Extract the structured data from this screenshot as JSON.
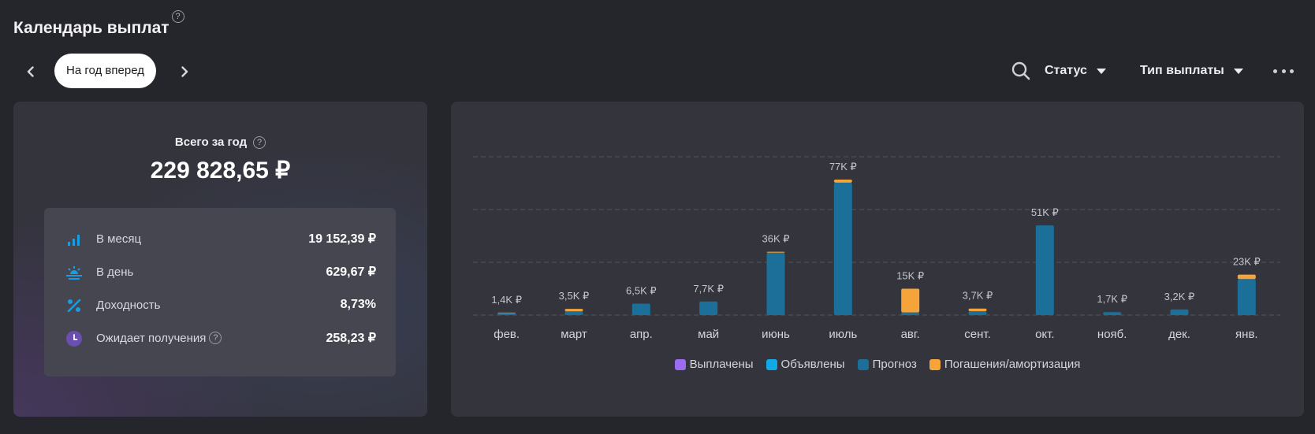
{
  "header": {
    "title": "Календарь выплат",
    "help": "?"
  },
  "nav": {
    "period_label": "На год вперед",
    "status_label": "Статус",
    "payment_type_label": "Тип выплаты"
  },
  "summary": {
    "total_label": "Всего за год",
    "total_value": "229 828,65 ₽",
    "help": "?",
    "stats": [
      {
        "label": "В месяц",
        "value": "19 152,39 ₽",
        "icon": "bars-icon",
        "color": "#1a9ce0"
      },
      {
        "label": "В день",
        "value": "629,67 ₽",
        "icon": "sunrise-icon",
        "color": "#1a9ce0"
      },
      {
        "label": "Доходность",
        "value": "8,73%",
        "icon": "percent-icon",
        "color": "#1a9ce0"
      },
      {
        "label": "Ожидает получения",
        "value": "258,23 ₽",
        "icon": "clock-icon",
        "color": "#6a4fb0"
      }
    ]
  },
  "chart_data": {
    "type": "bar",
    "stacked": true,
    "categories": [
      "фев.",
      "март",
      "апр.",
      "май",
      "июнь",
      "июль",
      "авг.",
      "сент.",
      "окт.",
      "нояб.",
      "дек.",
      "янв."
    ],
    "labels": [
      "1,4K ₽",
      "3,5K ₽",
      "6,5K ₽",
      "7,7K ₽",
      "36K ₽",
      "77K ₽",
      "15K ₽",
      "3,7K ₽",
      "51K ₽",
      "1,7K ₽",
      "3,2K ₽",
      "23K ₽"
    ],
    "series": [
      {
        "name": "Выплачены",
        "color": "#9b6cf0",
        "values": [
          0,
          0,
          0,
          0,
          0,
          0,
          0,
          0,
          0,
          0,
          0,
          0
        ]
      },
      {
        "name": "Объявлены",
        "color": "#12a8e8",
        "values": [
          0,
          0,
          0,
          0,
          0,
          0,
          0,
          0,
          0,
          0,
          0,
          0
        ]
      },
      {
        "name": "Прогноз",
        "color": "#1b6f99",
        "values": [
          1.1,
          2.1,
          6.5,
          7.7,
          35.5,
          75.3,
          1.5,
          2.2,
          51,
          1.7,
          3.2,
          20.5
        ]
      },
      {
        "name": "Погашения/амортизация",
        "color": "#f5a43a",
        "values": [
          0.3,
          1.4,
          0,
          0,
          0.5,
          1.7,
          13.5,
          1.5,
          0,
          0,
          0,
          2.5
        ]
      }
    ],
    "ylim": [
      0,
      90
    ],
    "grid": true,
    "legend": "bottom"
  }
}
